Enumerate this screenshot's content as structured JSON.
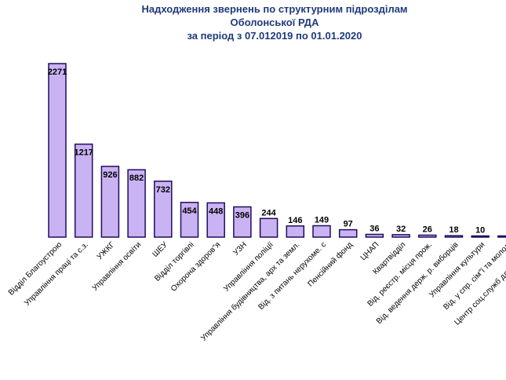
{
  "title": {
    "line1": "Надходження звернень по структурним підрозділам  Оболонської РДА",
    "line2": "за період з 07.012019 по 01.01.2020"
  },
  "colors": {
    "bar_fill": "#c9b3f2",
    "bar_stroke": "#1e0c5e",
    "title": "#1f3a7a"
  },
  "chart_data": {
    "type": "bar",
    "title": "Надходження звернень по структурним підрозділам  Оболонської РДА за період з 07.012019 по 01.01.2020",
    "categories": [
      "Відділ Благоустрою",
      "Управління праці та с.з.",
      "УЖКГ",
      "Управління освіти",
      "ШЕУ",
      "Відділ торгівлі",
      "Охорона здоров\"я",
      "УЗН",
      "Управління поліції",
      "Управління будівництва, арх та земл.",
      "Від. з питань нерухоме. с",
      "Пенсійний фонд",
      "ЦНАП",
      "Квартвідділ",
      "Від. реєстр. місця прож.",
      "Від. ведення  держ. р. виборців",
      "Управління культури",
      "Від. у спр. сім\"ї та молоді",
      "Центр соц.служб для дітей, сім"
    ],
    "values": [
      2271,
      1217,
      926,
      882,
      732,
      454,
      448,
      396,
      244,
      146,
      149,
      97,
      36,
      32,
      26,
      18,
      10,
      0,
      0
    ],
    "value_labels": [
      "2271",
      "1217",
      "926",
      "882",
      "732",
      "454",
      "448",
      "396",
      "244",
      "146",
      "149",
      "97",
      "36",
      "32",
      "26",
      "18",
      "10",
      "",
      ""
    ],
    "ylim": [
      0,
      2400
    ],
    "grid": false,
    "xlabel": "",
    "ylabel": ""
  }
}
